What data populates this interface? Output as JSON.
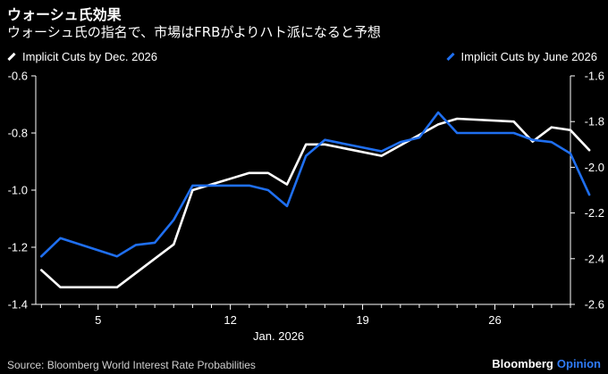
{
  "header": {
    "title": "ウォーシュ氏効果",
    "subtitle": "ウォーシュ氏の指名で、市場はFRBがよりハト派になると予想"
  },
  "legend": {
    "left_label": "Implicit Cuts by Dec. 2026",
    "right_label": "Implicit Cuts by June 2026"
  },
  "footer": {
    "source": "Source: Bloomberg World Interest Rate Probabilities",
    "brand_name": "Bloomberg",
    "brand_suffix": "Opinion"
  },
  "colors": {
    "background": "#000000",
    "dec_series": "#ffffff",
    "june_series": "#1f6ff0",
    "axis_text": "#ffffff"
  },
  "chart_data": {
    "type": "line",
    "title": "ウォーシュ氏効果",
    "subtitle": "ウォーシュ氏の指名で、市場はFRBがよりハト派になると予想",
    "xlabel": "Jan. 2026",
    "x_ticks": [
      5,
      12,
      19,
      26
    ],
    "x_tick_labels": [
      "5",
      "12",
      "19",
      "26"
    ],
    "xlim": [
      1.7,
      30
    ],
    "grid": false,
    "legend_position": "top",
    "y_left": {
      "lim": [
        -1.4,
        -0.6
      ],
      "ticks": [
        -1.4,
        -1.2,
        -1.0,
        -0.8,
        -0.6
      ],
      "tick_labels": [
        "-1.4",
        "-1.2",
        "-1.0",
        "-0.8",
        "-0.6"
      ]
    },
    "y_right": {
      "lim": [
        -2.6,
        -1.6
      ],
      "ticks": [
        -2.6,
        -2.4,
        -2.2,
        -2.0,
        -1.8,
        -1.6
      ],
      "tick_labels": [
        "-2.6",
        "-2.4",
        "-2.2",
        "-2.0",
        "-1.8",
        "-1.6"
      ]
    },
    "series": [
      {
        "name": "Implicit Cuts by Dec. 2026",
        "axis": "left",
        "color": "#ffffff",
        "x": [
          2,
          3,
          6,
          7,
          8,
          9,
          10,
          13,
          14,
          15,
          16,
          17,
          20,
          23,
          24,
          27,
          28,
          29,
          30,
          31
        ],
        "y": [
          -1.28,
          -1.34,
          -1.34,
          -1.29,
          -1.24,
          -1.19,
          -1.0,
          -0.94,
          -0.94,
          -0.98,
          -0.84,
          -0.84,
          -0.88,
          -0.77,
          -0.75,
          -0.76,
          -0.83,
          -0.78,
          -0.79,
          -0.86
        ]
      },
      {
        "name": "Implicit Cuts by June 2026",
        "axis": "right",
        "color": "#1f6ff0",
        "x": [
          2,
          3,
          6,
          7,
          8,
          9,
          10,
          13,
          14,
          15,
          16,
          17,
          20,
          21,
          22,
          23,
          24,
          27,
          28,
          29,
          30,
          31
        ],
        "y": [
          -2.39,
          -2.31,
          -2.39,
          -2.34,
          -2.33,
          -2.23,
          -2.08,
          -2.08,
          -2.1,
          -2.17,
          -1.95,
          -1.88,
          -1.93,
          -1.89,
          -1.87,
          -1.76,
          -1.85,
          -1.85,
          -1.88,
          -1.89,
          -1.94,
          -2.12
        ]
      }
    ]
  }
}
